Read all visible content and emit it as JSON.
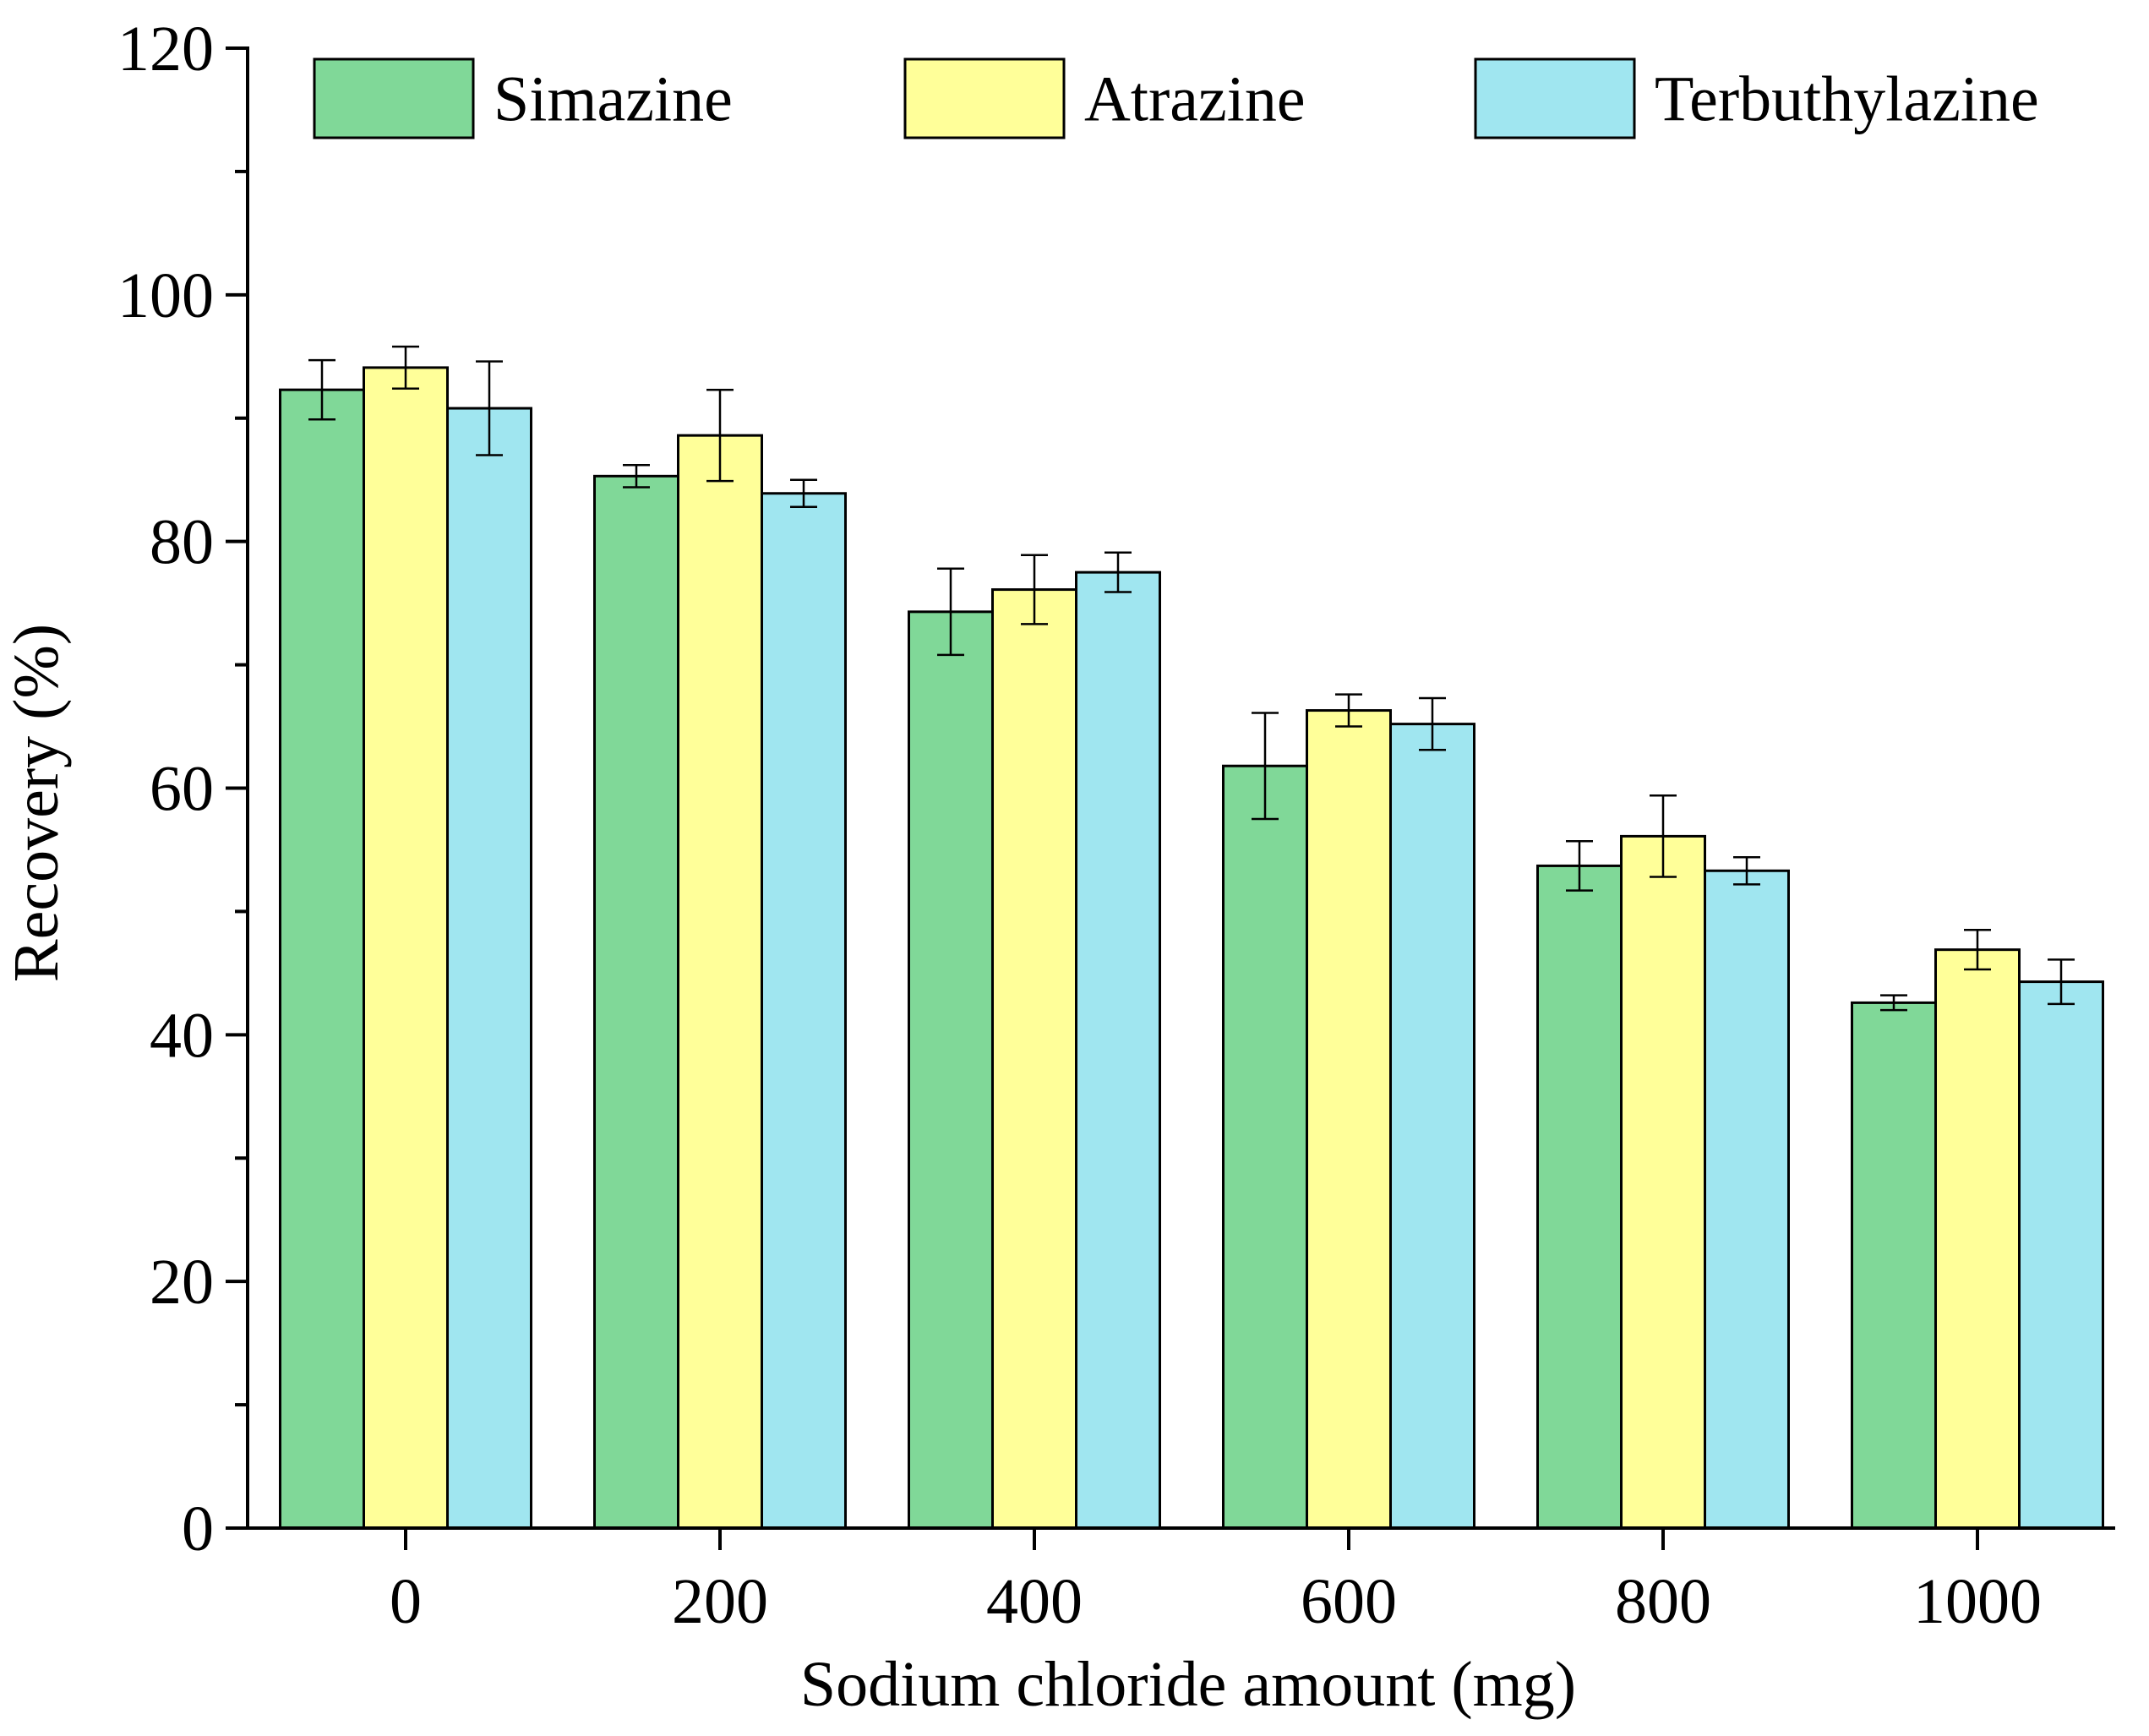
{
  "chart_data": {
    "type": "bar",
    "title": "",
    "xlabel": "Sodium chloride amount (mg)",
    "ylabel": "Recovery (%)",
    "categories": [
      "0",
      "200",
      "400",
      "600",
      "800",
      "1000"
    ],
    "ylim": [
      0,
      120
    ],
    "yticks": [
      0,
      20,
      40,
      60,
      80,
      100,
      120
    ],
    "grid": false,
    "legend_position": "top",
    "series": [
      {
        "name": "Simazine",
        "color": "#80d898",
        "values": [
          92.3,
          85.3,
          74.3,
          61.8,
          53.7,
          42.6
        ],
        "errors": [
          2.4,
          0.9,
          3.5,
          4.3,
          2.0,
          0.6
        ]
      },
      {
        "name": "Atrazine",
        "color": "#ffff99",
        "values": [
          94.1,
          88.6,
          76.1,
          66.3,
          56.1,
          46.9
        ],
        "errors": [
          1.7,
          3.7,
          2.8,
          1.3,
          3.3,
          1.6
        ]
      },
      {
        "name": "Terbuthylazine",
        "color": "#a0e6f0",
        "values": [
          90.8,
          83.9,
          77.5,
          65.2,
          53.3,
          44.3
        ],
        "errors": [
          3.8,
          1.1,
          1.6,
          2.1,
          1.1,
          1.8
        ]
      }
    ]
  }
}
